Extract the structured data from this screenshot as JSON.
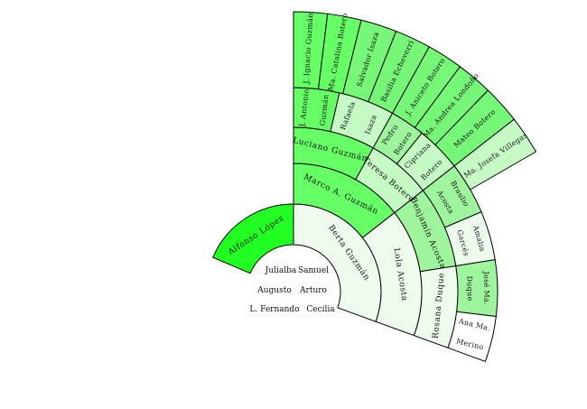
{
  "center": {
    "rows": [
      [
        "Julialba",
        "Samuel"
      ],
      [
        "Augusto",
        "Arturo"
      ],
      [
        "L. Fernando",
        "Cecilia"
      ]
    ]
  },
  "colors": {
    "left_parent": "#22ff22",
    "strong": "#66ff66",
    "medium": "#77f777",
    "light": "#9ef59e",
    "pale": "#c6fbc6",
    "faint": "#eefcee",
    "white": "#ffffff"
  },
  "fan": [
    {
      "name": "Alfonso López",
      "ring": 1,
      "side": "left",
      "color": "left_parent"
    },
    {
      "name": "Berta Guzmán",
      "ring": 1,
      "side": "right",
      "color": "faint"
    },
    {
      "name": "Marco A. Guzmán",
      "ring": 2,
      "color": "strong"
    },
    {
      "name": "Lola Acosta",
      "ring": 2,
      "color": "faint"
    },
    {
      "name": "Luciano Guzmán",
      "ring": 3,
      "color": "strong"
    },
    {
      "name": "Teresa Botero",
      "ring": 3,
      "color": "pale"
    },
    {
      "name": "Benjamín Acosta",
      "ring": 3,
      "color": "light"
    },
    {
      "name": "Rosana Duque",
      "ring": 3,
      "color": "faint"
    },
    {
      "name": "J. Antonio Guzmán",
      "ring": 4,
      "color": "strong"
    },
    {
      "name": "Rafaela Isaza",
      "ring": 4,
      "color": "pale"
    },
    {
      "name": "Pedro Botero",
      "ring": 4,
      "color": "light"
    },
    {
      "name": "Cipriana Botero",
      "ring": 4,
      "color": "pale"
    },
    {
      "name": "Braulio Acosta",
      "ring": 4,
      "color": "light"
    },
    {
      "name": "Amalia Garcés",
      "ring": 4,
      "color": "faint"
    },
    {
      "name": "José Ma. Duque",
      "ring": 4,
      "color": "light"
    },
    {
      "name": "Ana Ma. Merino",
      "ring": 4,
      "color": "white"
    },
    {
      "name": "J. Ignacio Guzmán",
      "ring": 5,
      "color": "strong"
    },
    {
      "name": "Ma. Catalina Botero",
      "ring": 5,
      "color": "strong"
    },
    {
      "name": "Salvador Isaza",
      "ring": 5,
      "color": "medium"
    },
    {
      "name": "Basilia Echeverri",
      "ring": 5,
      "color": "medium"
    },
    {
      "name": "J. Aniceto Botero",
      "ring": 5,
      "color": "medium"
    },
    {
      "name": "Ma. Andrea Londoño",
      "ring": 5,
      "color": "medium"
    },
    {
      "name": "Mateo Botero",
      "ring": 5,
      "color": "medium"
    },
    {
      "name": "Ma. Josefa Villegas",
      "ring": 5,
      "color": "pale"
    }
  ]
}
